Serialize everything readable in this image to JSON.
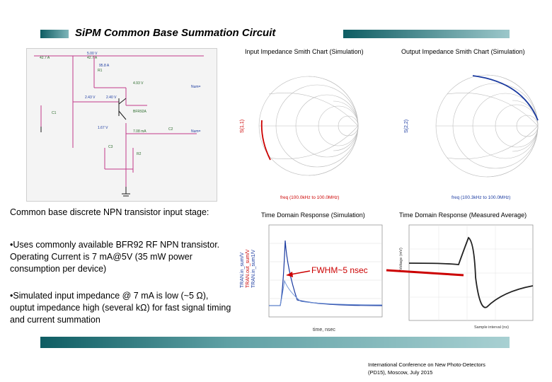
{
  "slide": {
    "title": "SiPM Common Base Summation Circuit",
    "charts": {
      "input_smith_title": "Input Impedance Smith Chart (Simulation)",
      "output_smith_title": "Output Impedance Smith Chart (Simulation)",
      "time_sim_title": "Time Domain Response (Simulation)",
      "time_meas_title": "Time Domain Response (Measured Average)",
      "input_smith_ylabel": "S(1,1)",
      "output_smith_ylabel": "S(2,2)",
      "input_smith_freq": "freq (100.0kHz to 100.0MHz)",
      "output_smith_freq": "freq (100.3kHz to 100.0MHz)",
      "sim_xlabel": "time, nsec",
      "meas_xlabel": "Sample interval (ns)",
      "meas_ylabel": "Voltage (mV)",
      "sim_legend": [
        "TRAN.in_sum/V",
        "TRAN.out_sum/V",
        "TRAN.in_sum1/V"
      ],
      "annotation": "FWHM~5 nsec"
    },
    "schematic_caption": "Common base discrete NPN transistor input stage:",
    "bullets": [
      "•Uses commonly available BFR92 RF NPN transistor. Operating Current is 7 mA@5V (35 mW power consumption per device)",
      "•Simulated input impedance @ 7 mA is low (~5 Ω), ouptut impedance high (several kΩ) for fast signal timing and current summation"
    ],
    "footer": "International Conference on New Photo-Detectors (PD15), Moscow, July 2015",
    "accent": "#0e5d63",
    "highlight": "#cc0000"
  }
}
